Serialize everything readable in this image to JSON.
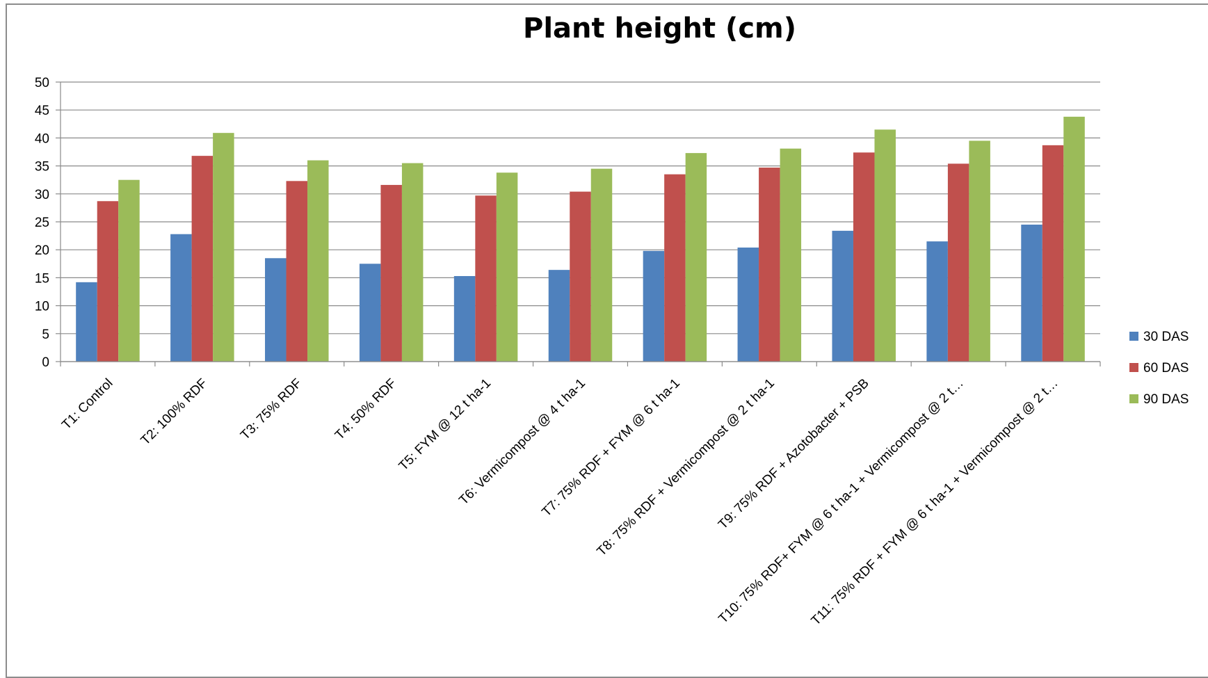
{
  "chart_data": {
    "type": "bar",
    "title": "Plant height (cm)",
    "xlabel": "",
    "ylabel": "",
    "ylim": [
      0,
      50
    ],
    "yticks": [
      0,
      5,
      10,
      15,
      20,
      25,
      30,
      35,
      40,
      45,
      50
    ],
    "grid": true,
    "legend_position": "right",
    "categories": [
      "T1: Control",
      "T2: 100% RDF",
      "T3: 75% RDF",
      "T4: 50% RDF",
      "T5: FYM @ 12 t ha-1",
      "T6: Vermicompost @ 4 t ha-1",
      "T7: 75% RDF + FYM @ 6 t ha-1",
      "T8: 75% RDF + Vermicompost @ 2 t ha-1",
      "T9: 75% RDF + Azotobacter + PSB",
      "T10: 75% RDF+ FYM @ 6 t ha-1 + Vermicompost @ 2 t…",
      "T11: 75% RDF + FYM @ 6 t ha-1 + Vermicompost @ 2 t…"
    ],
    "series": [
      {
        "name": "30 DAS",
        "color": "#4F81BD",
        "values": [
          14.2,
          22.8,
          18.5,
          17.5,
          15.3,
          16.4,
          19.8,
          20.4,
          23.4,
          21.5,
          24.5
        ]
      },
      {
        "name": "60 DAS",
        "color": "#C0504D",
        "values": [
          28.7,
          36.8,
          32.3,
          31.6,
          29.7,
          30.4,
          33.5,
          34.7,
          37.4,
          35.4,
          38.7
        ]
      },
      {
        "name": "90 DAS",
        "color": "#9BBB59",
        "values": [
          32.5,
          40.9,
          36.0,
          35.5,
          33.8,
          34.5,
          37.3,
          38.1,
          41.5,
          39.5,
          43.8
        ]
      }
    ]
  }
}
